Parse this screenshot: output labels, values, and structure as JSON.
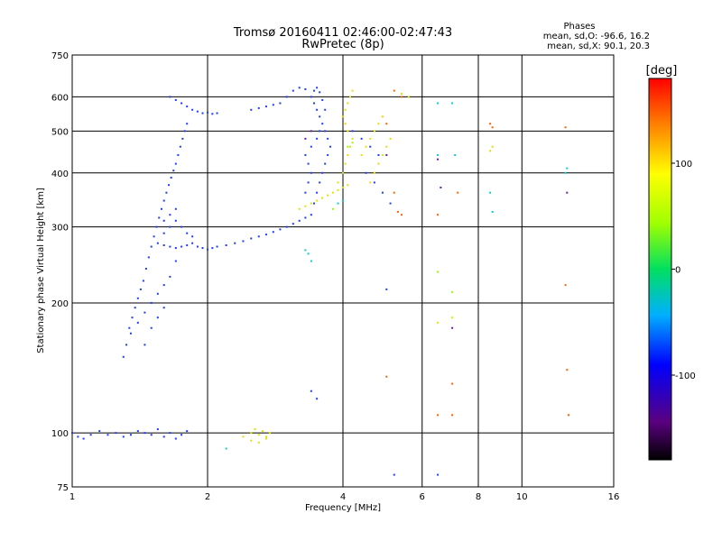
{
  "title_line1": "Tromsø 20160411 02:46:00-02:47:43",
  "title_line2": "RwPretec (8p)",
  "phase_box": {
    "heading": "Phases",
    "line_o": "mean, sd,O: -96.6, 16.2",
    "line_x": "mean, sd,X:  90.1, 20.3"
  },
  "chart_data": {
    "type": "scatter",
    "xlabel": "Frequency [MHz]",
    "ylabel": "Stationary phase Virtual Height [km]",
    "x_scale": "log",
    "y_scale": "log",
    "xlim": [
      1,
      16
    ],
    "ylim": [
      75,
      750
    ],
    "x_ticks": [
      1,
      2,
      4,
      6,
      8,
      10,
      16
    ],
    "y_ticks": [
      75,
      100,
      200,
      300,
      400,
      500,
      600,
      750
    ],
    "x_grid": [
      2,
      4,
      6,
      8,
      10
    ],
    "y_grid": [
      100,
      200,
      300,
      400,
      500,
      600
    ],
    "grid": true,
    "colorbar": {
      "label": "[deg]",
      "range": [
        -180,
        180
      ],
      "ticks": [
        100,
        0,
        -100
      ],
      "colormap": "rainbow (black-purple-blue-cyan-green-yellow-red)"
    },
    "series": [
      {
        "name": "",
        "color": "#1e3cff",
        "points": [
          [
            1.0,
            100
          ],
          [
            1.03,
            98
          ],
          [
            1.06,
            97
          ],
          [
            1.1,
            99
          ],
          [
            1.15,
            101
          ],
          [
            1.2,
            99
          ],
          [
            1.25,
            100
          ],
          [
            1.3,
            98
          ],
          [
            1.35,
            99
          ],
          [
            1.4,
            101
          ],
          [
            1.45,
            100
          ],
          [
            1.5,
            99
          ],
          [
            1.55,
            102
          ],
          [
            1.6,
            98
          ],
          [
            1.65,
            100
          ],
          [
            1.7,
            97
          ],
          [
            1.75,
            99
          ],
          [
            1.8,
            101
          ],
          [
            1.3,
            150
          ],
          [
            1.32,
            160
          ],
          [
            1.34,
            175
          ],
          [
            1.36,
            185
          ],
          [
            1.38,
            195
          ],
          [
            1.4,
            205
          ],
          [
            1.42,
            215
          ],
          [
            1.44,
            225
          ],
          [
            1.46,
            240
          ],
          [
            1.48,
            255
          ],
          [
            1.5,
            270
          ],
          [
            1.52,
            285
          ],
          [
            1.54,
            300
          ],
          [
            1.56,
            315
          ],
          [
            1.58,
            330
          ],
          [
            1.6,
            345
          ],
          [
            1.62,
            360
          ],
          [
            1.64,
            375
          ],
          [
            1.66,
            390
          ],
          [
            1.68,
            405
          ],
          [
            1.7,
            420
          ],
          [
            1.72,
            440
          ],
          [
            1.74,
            460
          ],
          [
            1.76,
            480
          ],
          [
            1.78,
            500
          ],
          [
            1.8,
            520
          ],
          [
            1.35,
            170
          ],
          [
            1.4,
            180
          ],
          [
            1.45,
            190
          ],
          [
            1.5,
            200
          ],
          [
            1.55,
            210
          ],
          [
            1.6,
            220
          ],
          [
            1.65,
            230
          ],
          [
            1.7,
            250
          ],
          [
            1.45,
            160
          ],
          [
            1.5,
            175
          ],
          [
            1.55,
            185
          ],
          [
            1.6,
            195
          ],
          [
            1.55,
            275
          ],
          [
            1.6,
            272
          ],
          [
            1.65,
            270
          ],
          [
            1.7,
            268
          ],
          [
            1.75,
            270
          ],
          [
            1.8,
            272
          ],
          [
            1.85,
            275
          ],
          [
            1.9,
            270
          ],
          [
            1.95,
            268
          ],
          [
            2.0,
            266
          ],
          [
            2.05,
            268
          ],
          [
            2.1,
            270
          ],
          [
            2.2,
            272
          ],
          [
            2.3,
            275
          ],
          [
            2.4,
            278
          ],
          [
            2.5,
            282
          ],
          [
            2.6,
            285
          ],
          [
            2.7,
            288
          ],
          [
            2.8,
            292
          ],
          [
            2.9,
            296
          ],
          [
            3.0,
            300
          ],
          [
            3.1,
            305
          ],
          [
            3.2,
            310
          ],
          [
            3.3,
            315
          ],
          [
            1.6,
            290
          ],
          [
            1.65,
            300
          ],
          [
            1.7,
            310
          ],
          [
            1.75,
            300
          ],
          [
            1.8,
            290
          ],
          [
            1.85,
            285
          ],
          [
            1.6,
            310
          ],
          [
            1.65,
            320
          ],
          [
            1.7,
            330
          ],
          [
            1.65,
            600
          ],
          [
            1.7,
            590
          ],
          [
            1.75,
            580
          ],
          [
            1.8,
            570
          ],
          [
            1.85,
            560
          ],
          [
            1.9,
            555
          ],
          [
            1.95,
            550
          ],
          [
            2.0,
            552
          ],
          [
            2.05,
            548
          ],
          [
            2.1,
            550
          ],
          [
            2.5,
            560
          ],
          [
            2.6,
            565
          ],
          [
            2.7,
            570
          ],
          [
            2.8,
            575
          ],
          [
            2.9,
            580
          ],
          [
            3.0,
            600
          ],
          [
            3.1,
            620
          ],
          [
            3.2,
            630
          ],
          [
            3.3,
            625
          ],
          [
            3.4,
            320
          ],
          [
            3.45,
            340
          ],
          [
            3.5,
            360
          ],
          [
            3.55,
            380
          ],
          [
            3.6,
            400
          ],
          [
            3.65,
            420
          ],
          [
            3.7,
            440
          ],
          [
            3.75,
            460
          ],
          [
            3.7,
            480
          ],
          [
            3.65,
            500
          ],
          [
            3.6,
            520
          ],
          [
            3.55,
            540
          ],
          [
            3.5,
            560
          ],
          [
            3.45,
            580
          ],
          [
            3.4,
            600
          ],
          [
            3.45,
            620
          ],
          [
            3.5,
            630
          ],
          [
            3.55,
            615
          ],
          [
            3.6,
            590
          ],
          [
            3.65,
            560
          ],
          [
            3.3,
            360
          ],
          [
            3.35,
            380
          ],
          [
            3.4,
            400
          ],
          [
            3.35,
            420
          ],
          [
            3.3,
            440
          ],
          [
            3.4,
            460
          ],
          [
            3.5,
            480
          ],
          [
            3.55,
            500
          ],
          [
            4.2,
            500
          ],
          [
            4.4,
            480
          ],
          [
            4.6,
            460
          ],
          [
            4.8,
            440
          ],
          [
            4.5,
            400
          ],
          [
            4.7,
            380
          ],
          [
            4.9,
            360
          ],
          [
            5.1,
            340
          ],
          [
            3.4,
            125
          ],
          [
            3.5,
            120
          ],
          [
            5.2,
            80
          ],
          [
            6.5,
            80
          ],
          [
            5.0,
            215
          ]
        ]
      },
      {
        "name": "",
        "color": "#e0e000",
        "points": [
          [
            2.4,
            98
          ],
          [
            2.5,
            100
          ],
          [
            2.55,
            102
          ],
          [
            2.6,
            99
          ],
          [
            2.65,
            101
          ],
          [
            2.7,
            98
          ],
          [
            2.75,
            100
          ],
          [
            2.5,
            96
          ],
          [
            2.6,
            95
          ],
          [
            2.7,
            97
          ],
          [
            3.2,
            330
          ],
          [
            3.3,
            335
          ],
          [
            3.4,
            340
          ],
          [
            3.5,
            345
          ],
          [
            3.6,
            350
          ],
          [
            3.7,
            355
          ],
          [
            3.8,
            360
          ],
          [
            3.9,
            365
          ],
          [
            4.0,
            370
          ],
          [
            4.1,
            375
          ],
          [
            3.9,
            380
          ],
          [
            4.0,
            400
          ],
          [
            4.05,
            420
          ],
          [
            4.1,
            440
          ],
          [
            4.15,
            460
          ],
          [
            4.2,
            480
          ],
          [
            4.1,
            500
          ],
          [
            4.05,
            520
          ],
          [
            4.0,
            540
          ],
          [
            4.05,
            560
          ],
          [
            4.1,
            580
          ],
          [
            4.15,
            600
          ],
          [
            4.2,
            620
          ],
          [
            4.4,
            440
          ],
          [
            4.5,
            460
          ],
          [
            4.6,
            480
          ],
          [
            4.7,
            500
          ],
          [
            4.8,
            520
          ],
          [
            4.9,
            540
          ],
          [
            4.6,
            380
          ],
          [
            4.7,
            400
          ],
          [
            4.8,
            420
          ],
          [
            4.9,
            440
          ],
          [
            5.0,
            460
          ],
          [
            5.1,
            480
          ],
          [
            5.4,
            610
          ],
          [
            5.6,
            600
          ],
          [
            6.5,
            180
          ],
          [
            7.0,
            185
          ],
          [
            8.5,
            450
          ],
          [
            8.6,
            460
          ]
        ]
      },
      {
        "name": "",
        "color": "#ff6000",
        "points": [
          [
            5.2,
            620
          ],
          [
            5.4,
            600
          ],
          [
            5.0,
            520
          ],
          [
            5.2,
            360
          ],
          [
            5.3,
            325
          ],
          [
            5.4,
            320
          ],
          [
            5.0,
            135
          ],
          [
            6.5,
            320
          ],
          [
            6.5,
            110
          ],
          [
            7.0,
            130
          ],
          [
            7.0,
            110
          ],
          [
            7.2,
            360
          ],
          [
            8.5,
            520
          ],
          [
            8.6,
            510
          ],
          [
            12.5,
            510
          ],
          [
            12.5,
            220
          ],
          [
            12.6,
            140
          ],
          [
            12.7,
            110
          ]
        ]
      },
      {
        "name": "",
        "color": "#00d0d0",
        "points": [
          [
            2.2,
            92
          ],
          [
            3.3,
            265
          ],
          [
            3.35,
            260
          ],
          [
            3.4,
            250
          ],
          [
            6.5,
            580
          ],
          [
            7.0,
            580
          ],
          [
            7.1,
            440
          ],
          [
            8.5,
            360
          ],
          [
            8.6,
            325
          ],
          [
            12.5,
            400
          ],
          [
            12.6,
            410
          ],
          [
            3.9,
            340
          ],
          [
            4.0,
            345
          ],
          [
            6.5,
            440
          ]
        ]
      },
      {
        "name": "",
        "color": "#90ff00",
        "points": [
          [
            6.5,
            236
          ],
          [
            7.0,
            212
          ],
          [
            4.1,
            460
          ],
          [
            4.2,
            470
          ],
          [
            3.8,
            330
          ]
        ]
      },
      {
        "name": "",
        "color": "#6a1aa0",
        "points": [
          [
            6.5,
            430
          ],
          [
            6.6,
            370
          ],
          [
            7.0,
            175
          ],
          [
            12.6,
            360
          ],
          [
            5.0,
            440
          ],
          [
            3.3,
            480
          ],
          [
            3.4,
            500
          ]
        ]
      }
    ]
  }
}
